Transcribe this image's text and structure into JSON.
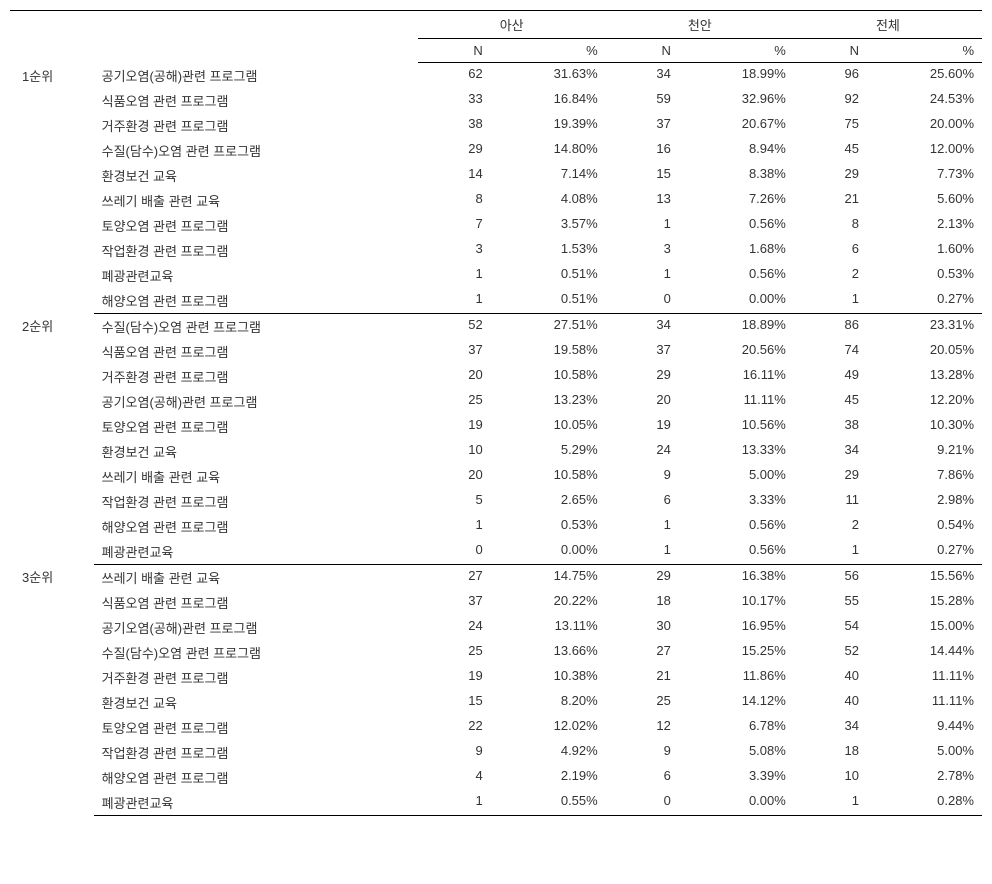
{
  "columns": {
    "group1": "아산",
    "group2": "천안",
    "group3": "전체",
    "sub_n": "N",
    "sub_pct": "%"
  },
  "groups": [
    {
      "rank": "1순위",
      "rows": [
        {
          "label": "공기오염(공해)관련  프로그램",
          "n1": "62",
          "p1": "31.63%",
          "n2": "34",
          "p2": "18.99%",
          "n3": "96",
          "p3": "25.60%"
        },
        {
          "label": "식품오염 관련  프로그램",
          "n1": "33",
          "p1": "16.84%",
          "n2": "59",
          "p2": "32.96%",
          "n3": "92",
          "p3": "24.53%"
        },
        {
          "label": "거주환경 관련  프로그램",
          "n1": "38",
          "p1": "19.39%",
          "n2": "37",
          "p2": "20.67%",
          "n3": "75",
          "p3": "20.00%"
        },
        {
          "label": "수질(담수)오염  관련 프로그램",
          "n1": "29",
          "p1": "14.80%",
          "n2": "16",
          "p2": "8.94%",
          "n3": "45",
          "p3": "12.00%"
        },
        {
          "label": "환경보건 교육",
          "n1": "14",
          "p1": "7.14%",
          "n2": "15",
          "p2": "8.38%",
          "n3": "29",
          "p3": "7.73%"
        },
        {
          "label": "쓰레기 배출 관련  교육",
          "n1": "8",
          "p1": "4.08%",
          "n2": "13",
          "p2": "7.26%",
          "n3": "21",
          "p3": "5.60%"
        },
        {
          "label": "토양오염 관련  프로그램",
          "n1": "7",
          "p1": "3.57%",
          "n2": "1",
          "p2": "0.56%",
          "n3": "8",
          "p3": "2.13%"
        },
        {
          "label": "작업환경 관련  프로그램",
          "n1": "3",
          "p1": "1.53%",
          "n2": "3",
          "p2": "1.68%",
          "n3": "6",
          "p3": "1.60%"
        },
        {
          "label": "폐광관련교육",
          "n1": "1",
          "p1": "0.51%",
          "n2": "1",
          "p2": "0.56%",
          "n3": "2",
          "p3": "0.53%"
        },
        {
          "label": "해양오염 관련  프로그램",
          "n1": "1",
          "p1": "0.51%",
          "n2": "0",
          "p2": "0.00%",
          "n3": "1",
          "p3": "0.27%"
        }
      ]
    },
    {
      "rank": "2순위",
      "rows": [
        {
          "label": "수질(담수)오염  관련 프로그램",
          "n1": "52",
          "p1": "27.51%",
          "n2": "34",
          "p2": "18.89%",
          "n3": "86",
          "p3": "23.31%"
        },
        {
          "label": "식품오염 관련  프로그램",
          "n1": "37",
          "p1": "19.58%",
          "n2": "37",
          "p2": "20.56%",
          "n3": "74",
          "p3": "20.05%"
        },
        {
          "label": "거주환경 관련  프로그램",
          "n1": "20",
          "p1": "10.58%",
          "n2": "29",
          "p2": "16.11%",
          "n3": "49",
          "p3": "13.28%"
        },
        {
          "label": "공기오염(공해)관련  프로그램",
          "n1": "25",
          "p1": "13.23%",
          "n2": "20",
          "p2": "11.11%",
          "n3": "45",
          "p3": "12.20%"
        },
        {
          "label": "토양오염 관련  프로그램",
          "n1": "19",
          "p1": "10.05%",
          "n2": "19",
          "p2": "10.56%",
          "n3": "38",
          "p3": "10.30%"
        },
        {
          "label": "환경보건 교육",
          "n1": "10",
          "p1": "5.29%",
          "n2": "24",
          "p2": "13.33%",
          "n3": "34",
          "p3": "9.21%"
        },
        {
          "label": "쓰레기 배출 관련  교육",
          "n1": "20",
          "p1": "10.58%",
          "n2": "9",
          "p2": "5.00%",
          "n3": "29",
          "p3": "7.86%"
        },
        {
          "label": "작업환경 관련  프로그램",
          "n1": "5",
          "p1": "2.65%",
          "n2": "6",
          "p2": "3.33%",
          "n3": "11",
          "p3": "2.98%"
        },
        {
          "label": "해양오염 관련  프로그램",
          "n1": "1",
          "p1": "0.53%",
          "n2": "1",
          "p2": "0.56%",
          "n3": "2",
          "p3": "0.54%"
        },
        {
          "label": "폐광관련교육",
          "n1": "0",
          "p1": "0.00%",
          "n2": "1",
          "p2": "0.56%",
          "n3": "1",
          "p3": "0.27%"
        }
      ]
    },
    {
      "rank": "3순위",
      "rows": [
        {
          "label": "쓰레기 배출 관련  교육",
          "n1": "27",
          "p1": "14.75%",
          "n2": "29",
          "p2": "16.38%",
          "n3": "56",
          "p3": "15.56%"
        },
        {
          "label": "식품오염 관련  프로그램",
          "n1": "37",
          "p1": "20.22%",
          "n2": "18",
          "p2": "10.17%",
          "n3": "55",
          "p3": "15.28%"
        },
        {
          "label": "공기오염(공해)관련  프로그램",
          "n1": "24",
          "p1": "13.11%",
          "n2": "30",
          "p2": "16.95%",
          "n3": "54",
          "p3": "15.00%"
        },
        {
          "label": "수질(담수)오염  관련 프로그램",
          "n1": "25",
          "p1": "13.66%",
          "n2": "27",
          "p2": "15.25%",
          "n3": "52",
          "p3": "14.44%"
        },
        {
          "label": "거주환경 관련  프로그램",
          "n1": "19",
          "p1": "10.38%",
          "n2": "21",
          "p2": "11.86%",
          "n3": "40",
          "p3": "11.11%"
        },
        {
          "label": "환경보건 교육",
          "n1": "15",
          "p1": "8.20%",
          "n2": "25",
          "p2": "14.12%",
          "n3": "40",
          "p3": "11.11%"
        },
        {
          "label": "토양오염 관련  프로그램",
          "n1": "22",
          "p1": "12.02%",
          "n2": "12",
          "p2": "6.78%",
          "n3": "34",
          "p3": "9.44%"
        },
        {
          "label": "작업환경 관련  프로그램",
          "n1": "9",
          "p1": "4.92%",
          "n2": "9",
          "p2": "5.08%",
          "n3": "18",
          "p3": "5.00%"
        },
        {
          "label": "해양오염 관련  프로그램",
          "n1": "4",
          "p1": "2.19%",
          "n2": "6",
          "p2": "3.39%",
          "n3": "10",
          "p3": "2.78%"
        },
        {
          "label": "폐광관련교육",
          "n1": "1",
          "p1": "0.55%",
          "n2": "0",
          "p2": "0.00%",
          "n3": "1",
          "p3": "0.28%"
        }
      ]
    }
  ]
}
